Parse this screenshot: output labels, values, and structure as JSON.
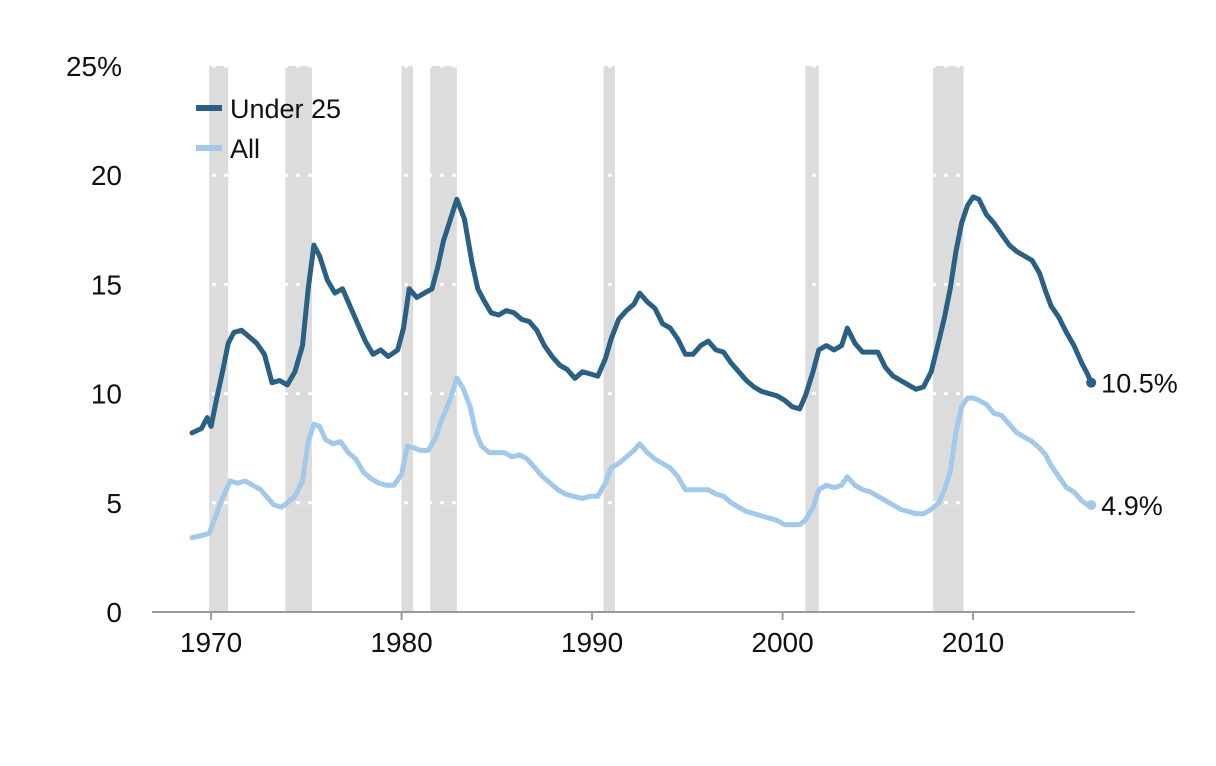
{
  "chart_data": {
    "type": "line",
    "title": "",
    "xlabel": "",
    "ylabel": "",
    "xlim": [
      1966.9,
      2018.5
    ],
    "ylim": [
      0,
      25
    ],
    "y_ticks": [
      {
        "value": 0,
        "label": "0"
      },
      {
        "value": 5,
        "label": "5"
      },
      {
        "value": 10,
        "label": "10"
      },
      {
        "value": 15,
        "label": "15"
      },
      {
        "value": 20,
        "label": "20"
      },
      {
        "value": 25,
        "label": "25%"
      }
    ],
    "x_ticks": [
      {
        "value": 1970,
        "label": "1970"
      },
      {
        "value": 1980,
        "label": "1980"
      },
      {
        "value": 1990,
        "label": "1990"
      },
      {
        "value": 2000,
        "label": "2000"
      },
      {
        "value": 2010,
        "label": "2010"
      }
    ],
    "grid": "dotted horizontal",
    "recessions": [
      [
        1969.9,
        1970.9
      ],
      [
        1973.9,
        1975.3
      ],
      [
        1980.0,
        1980.6
      ],
      [
        1981.5,
        1982.9
      ],
      [
        1990.6,
        1991.2
      ],
      [
        2001.2,
        2001.9
      ],
      [
        2007.9,
        2009.5
      ]
    ],
    "legend_position": "top-left",
    "series": [
      {
        "name": "Under 25",
        "color": "#2a6084",
        "end_label": "10.5%",
        "end_value": 10.5,
        "points": [
          [
            1969.0,
            8.2
          ],
          [
            1969.5,
            8.4
          ],
          [
            1969.8,
            8.9
          ],
          [
            1970.0,
            8.5
          ],
          [
            1970.3,
            9.8
          ],
          [
            1970.6,
            11.0
          ],
          [
            1970.9,
            12.3
          ],
          [
            1971.2,
            12.8
          ],
          [
            1971.6,
            12.9
          ],
          [
            1972.0,
            12.6
          ],
          [
            1972.4,
            12.3
          ],
          [
            1972.8,
            11.8
          ],
          [
            1973.2,
            10.5
          ],
          [
            1973.6,
            10.6
          ],
          [
            1974.0,
            10.4
          ],
          [
            1974.4,
            11.0
          ],
          [
            1974.8,
            12.2
          ],
          [
            1975.1,
            14.8
          ],
          [
            1975.4,
            16.8
          ],
          [
            1975.7,
            16.3
          ],
          [
            1976.1,
            15.2
          ],
          [
            1976.5,
            14.6
          ],
          [
            1976.9,
            14.8
          ],
          [
            1977.3,
            14.0
          ],
          [
            1977.7,
            13.2
          ],
          [
            1978.1,
            12.4
          ],
          [
            1978.5,
            11.8
          ],
          [
            1978.9,
            12.0
          ],
          [
            1979.3,
            11.7
          ],
          [
            1979.8,
            12.0
          ],
          [
            1980.1,
            13.0
          ],
          [
            1980.4,
            14.8
          ],
          [
            1980.8,
            14.4
          ],
          [
            1981.2,
            14.6
          ],
          [
            1981.6,
            14.8
          ],
          [
            1981.9,
            15.8
          ],
          [
            1982.2,
            17.0
          ],
          [
            1982.5,
            17.8
          ],
          [
            1982.9,
            18.9
          ],
          [
            1983.3,
            18.0
          ],
          [
            1983.7,
            16.0
          ],
          [
            1984.0,
            14.8
          ],
          [
            1984.3,
            14.3
          ],
          [
            1984.7,
            13.7
          ],
          [
            1985.1,
            13.6
          ],
          [
            1985.5,
            13.8
          ],
          [
            1985.9,
            13.7
          ],
          [
            1986.3,
            13.4
          ],
          [
            1986.7,
            13.3
          ],
          [
            1987.1,
            12.9
          ],
          [
            1987.5,
            12.2
          ],
          [
            1987.9,
            11.7
          ],
          [
            1988.3,
            11.3
          ],
          [
            1988.7,
            11.1
          ],
          [
            1989.1,
            10.7
          ],
          [
            1989.5,
            11.0
          ],
          [
            1989.9,
            10.9
          ],
          [
            1990.3,
            10.8
          ],
          [
            1990.7,
            11.6
          ],
          [
            1991.0,
            12.5
          ],
          [
            1991.4,
            13.4
          ],
          [
            1991.8,
            13.8
          ],
          [
            1992.2,
            14.1
          ],
          [
            1992.5,
            14.6
          ],
          [
            1992.9,
            14.2
          ],
          [
            1993.3,
            13.9
          ],
          [
            1993.7,
            13.2
          ],
          [
            1994.1,
            13.0
          ],
          [
            1994.5,
            12.5
          ],
          [
            1994.9,
            11.8
          ],
          [
            1995.3,
            11.8
          ],
          [
            1995.7,
            12.2
          ],
          [
            1996.1,
            12.4
          ],
          [
            1996.5,
            12.0
          ],
          [
            1996.9,
            11.9
          ],
          [
            1997.3,
            11.4
          ],
          [
            1997.7,
            11.0
          ],
          [
            1998.1,
            10.6
          ],
          [
            1998.5,
            10.3
          ],
          [
            1998.9,
            10.1
          ],
          [
            1999.3,
            10.0
          ],
          [
            1999.7,
            9.9
          ],
          [
            2000.1,
            9.7
          ],
          [
            2000.5,
            9.4
          ],
          [
            2000.9,
            9.3
          ],
          [
            2001.2,
            9.9
          ],
          [
            2001.6,
            11.0
          ],
          [
            2001.9,
            12.0
          ],
          [
            2002.3,
            12.2
          ],
          [
            2002.7,
            12.0
          ],
          [
            2003.1,
            12.2
          ],
          [
            2003.4,
            13.0
          ],
          [
            2003.8,
            12.3
          ],
          [
            2004.2,
            11.9
          ],
          [
            2004.6,
            11.9
          ],
          [
            2005.0,
            11.9
          ],
          [
            2005.4,
            11.2
          ],
          [
            2005.8,
            10.8
          ],
          [
            2006.2,
            10.6
          ],
          [
            2006.6,
            10.4
          ],
          [
            2007.0,
            10.2
          ],
          [
            2007.4,
            10.3
          ],
          [
            2007.8,
            11.0
          ],
          [
            2008.2,
            12.4
          ],
          [
            2008.5,
            13.5
          ],
          [
            2008.8,
            14.8
          ],
          [
            2009.1,
            16.5
          ],
          [
            2009.4,
            17.8
          ],
          [
            2009.7,
            18.6
          ],
          [
            2010.0,
            19.0
          ],
          [
            2010.3,
            18.9
          ],
          [
            2010.7,
            18.2
          ],
          [
            2011.1,
            17.8
          ],
          [
            2011.5,
            17.3
          ],
          [
            2011.9,
            16.8
          ],
          [
            2012.3,
            16.5
          ],
          [
            2012.7,
            16.3
          ],
          [
            2013.1,
            16.1
          ],
          [
            2013.5,
            15.5
          ],
          [
            2013.8,
            14.7
          ],
          [
            2014.1,
            14.0
          ],
          [
            2014.5,
            13.5
          ],
          [
            2014.9,
            12.8
          ],
          [
            2015.3,
            12.2
          ],
          [
            2015.7,
            11.4
          ],
          [
            2016.0,
            10.9
          ],
          [
            2016.2,
            10.5
          ]
        ]
      },
      {
        "name": "All",
        "color": "#a3c9ea",
        "end_label": "4.9%",
        "end_value": 4.9,
        "points": [
          [
            1969.0,
            3.4
          ],
          [
            1969.5,
            3.5
          ],
          [
            1969.9,
            3.6
          ],
          [
            1970.2,
            4.3
          ],
          [
            1970.5,
            5.0
          ],
          [
            1970.8,
            5.6
          ],
          [
            1971.0,
            6.0
          ],
          [
            1971.4,
            5.9
          ],
          [
            1971.8,
            6.0
          ],
          [
            1972.2,
            5.8
          ],
          [
            1972.6,
            5.6
          ],
          [
            1973.0,
            5.2
          ],
          [
            1973.3,
            4.9
          ],
          [
            1973.7,
            4.8
          ],
          [
            1974.0,
            5.0
          ],
          [
            1974.4,
            5.3
          ],
          [
            1974.8,
            6.0
          ],
          [
            1975.1,
            7.8
          ],
          [
            1975.4,
            8.6
          ],
          [
            1975.7,
            8.5
          ],
          [
            1976.0,
            7.9
          ],
          [
            1976.4,
            7.7
          ],
          [
            1976.8,
            7.8
          ],
          [
            1977.2,
            7.3
          ],
          [
            1977.6,
            7.0
          ],
          [
            1978.0,
            6.4
          ],
          [
            1978.4,
            6.1
          ],
          [
            1978.8,
            5.9
          ],
          [
            1979.2,
            5.8
          ],
          [
            1979.6,
            5.8
          ],
          [
            1980.0,
            6.3
          ],
          [
            1980.3,
            7.6
          ],
          [
            1980.7,
            7.5
          ],
          [
            1981.0,
            7.4
          ],
          [
            1981.4,
            7.4
          ],
          [
            1981.8,
            8.0
          ],
          [
            1982.1,
            8.8
          ],
          [
            1982.5,
            9.6
          ],
          [
            1982.9,
            10.7
          ],
          [
            1983.2,
            10.3
          ],
          [
            1983.6,
            9.4
          ],
          [
            1983.9,
            8.2
          ],
          [
            1984.2,
            7.6
          ],
          [
            1984.6,
            7.3
          ],
          [
            1985.0,
            7.3
          ],
          [
            1985.4,
            7.3
          ],
          [
            1985.8,
            7.1
          ],
          [
            1986.2,
            7.2
          ],
          [
            1986.6,
            7.0
          ],
          [
            1987.0,
            6.6
          ],
          [
            1987.4,
            6.2
          ],
          [
            1987.8,
            5.9
          ],
          [
            1988.2,
            5.6
          ],
          [
            1988.6,
            5.4
          ],
          [
            1989.0,
            5.3
          ],
          [
            1989.5,
            5.2
          ],
          [
            1989.9,
            5.3
          ],
          [
            1990.3,
            5.3
          ],
          [
            1990.7,
            5.9
          ],
          [
            1991.0,
            6.6
          ],
          [
            1991.4,
            6.8
          ],
          [
            1991.8,
            7.1
          ],
          [
            1992.2,
            7.4
          ],
          [
            1992.5,
            7.7
          ],
          [
            1992.9,
            7.3
          ],
          [
            1993.3,
            7.0
          ],
          [
            1993.7,
            6.8
          ],
          [
            1994.1,
            6.6
          ],
          [
            1994.5,
            6.2
          ],
          [
            1994.9,
            5.6
          ],
          [
            1995.3,
            5.6
          ],
          [
            1995.7,
            5.6
          ],
          [
            1996.1,
            5.6
          ],
          [
            1996.5,
            5.4
          ],
          [
            1996.9,
            5.3
          ],
          [
            1997.3,
            5.0
          ],
          [
            1997.7,
            4.8
          ],
          [
            1998.1,
            4.6
          ],
          [
            1998.5,
            4.5
          ],
          [
            1998.9,
            4.4
          ],
          [
            1999.3,
            4.3
          ],
          [
            1999.7,
            4.2
          ],
          [
            2000.1,
            4.0
          ],
          [
            2000.5,
            4.0
          ],
          [
            2000.9,
            4.0
          ],
          [
            2001.2,
            4.2
          ],
          [
            2001.6,
            4.8
          ],
          [
            2001.9,
            5.6
          ],
          [
            2002.3,
            5.8
          ],
          [
            2002.7,
            5.7
          ],
          [
            2003.1,
            5.8
          ],
          [
            2003.4,
            6.2
          ],
          [
            2003.8,
            5.8
          ],
          [
            2004.2,
            5.6
          ],
          [
            2004.6,
            5.5
          ],
          [
            2005.0,
            5.3
          ],
          [
            2005.4,
            5.1
          ],
          [
            2005.8,
            4.9
          ],
          [
            2006.2,
            4.7
          ],
          [
            2006.6,
            4.6
          ],
          [
            2007.0,
            4.5
          ],
          [
            2007.4,
            4.5
          ],
          [
            2007.8,
            4.7
          ],
          [
            2008.2,
            5.0
          ],
          [
            2008.5,
            5.6
          ],
          [
            2008.8,
            6.4
          ],
          [
            2009.1,
            8.2
          ],
          [
            2009.4,
            9.4
          ],
          [
            2009.7,
            9.8
          ],
          [
            2010.0,
            9.8
          ],
          [
            2010.3,
            9.7
          ],
          [
            2010.7,
            9.5
          ],
          [
            2011.1,
            9.1
          ],
          [
            2011.5,
            9.0
          ],
          [
            2011.9,
            8.6
          ],
          [
            2012.3,
            8.2
          ],
          [
            2012.7,
            8.0
          ],
          [
            2013.1,
            7.8
          ],
          [
            2013.5,
            7.5
          ],
          [
            2013.8,
            7.2
          ],
          [
            2014.1,
            6.7
          ],
          [
            2014.5,
            6.2
          ],
          [
            2014.9,
            5.7
          ],
          [
            2015.3,
            5.5
          ],
          [
            2015.7,
            5.1
          ],
          [
            2016.0,
            4.9
          ],
          [
            2016.2,
            4.9
          ]
        ]
      }
    ]
  }
}
